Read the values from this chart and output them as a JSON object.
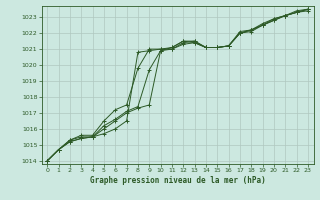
{
  "title": "Graphe pression niveau de la mer (hPa)",
  "background_color": "#cce8e0",
  "grid_color": "#b0c8c0",
  "line_color": "#2d5a27",
  "xlim": [
    -0.5,
    23.5
  ],
  "ylim": [
    1013.8,
    1023.7
  ],
  "yticks": [
    1014,
    1015,
    1016,
    1017,
    1018,
    1019,
    1020,
    1021,
    1022,
    1023
  ],
  "xticks": [
    0,
    1,
    2,
    3,
    4,
    5,
    6,
    7,
    8,
    9,
    10,
    11,
    12,
    13,
    14,
    15,
    16,
    17,
    18,
    19,
    20,
    21,
    22,
    23
  ],
  "series": [
    [
      1014.0,
      1014.7,
      1015.2,
      1015.4,
      1015.5,
      1015.7,
      1016.0,
      1016.5,
      1020.8,
      1020.9,
      1021.0,
      1021.0,
      1021.4,
      1021.5,
      1021.1,
      1021.1,
      1021.2,
      1022.0,
      1022.2,
      1022.5,
      1022.8,
      1023.1,
      1023.3,
      1023.4
    ],
    [
      1014.0,
      1014.7,
      1015.2,
      1015.4,
      1015.5,
      1016.0,
      1016.5,
      1017.0,
      1017.3,
      1017.5,
      1020.9,
      1021.0,
      1021.3,
      1021.4,
      1021.1,
      1021.1,
      1021.2,
      1022.0,
      1022.2,
      1022.5,
      1022.9,
      1023.1,
      1023.3,
      1023.5
    ],
    [
      1014.0,
      1014.7,
      1015.3,
      1015.5,
      1015.5,
      1016.2,
      1016.6,
      1017.1,
      1017.4,
      1019.7,
      1020.9,
      1021.1,
      1021.5,
      1021.4,
      1021.1,
      1021.1,
      1021.2,
      1022.0,
      1022.1,
      1022.5,
      1022.8,
      1023.1,
      1023.3,
      1023.5
    ],
    [
      1014.0,
      1014.7,
      1015.3,
      1015.6,
      1015.6,
      1016.5,
      1017.2,
      1017.5,
      1019.8,
      1021.0,
      1021.0,
      1021.1,
      1021.5,
      1021.5,
      1021.1,
      1021.1,
      1021.2,
      1022.1,
      1022.2,
      1022.6,
      1022.9,
      1023.1,
      1023.4,
      1023.5
    ]
  ]
}
